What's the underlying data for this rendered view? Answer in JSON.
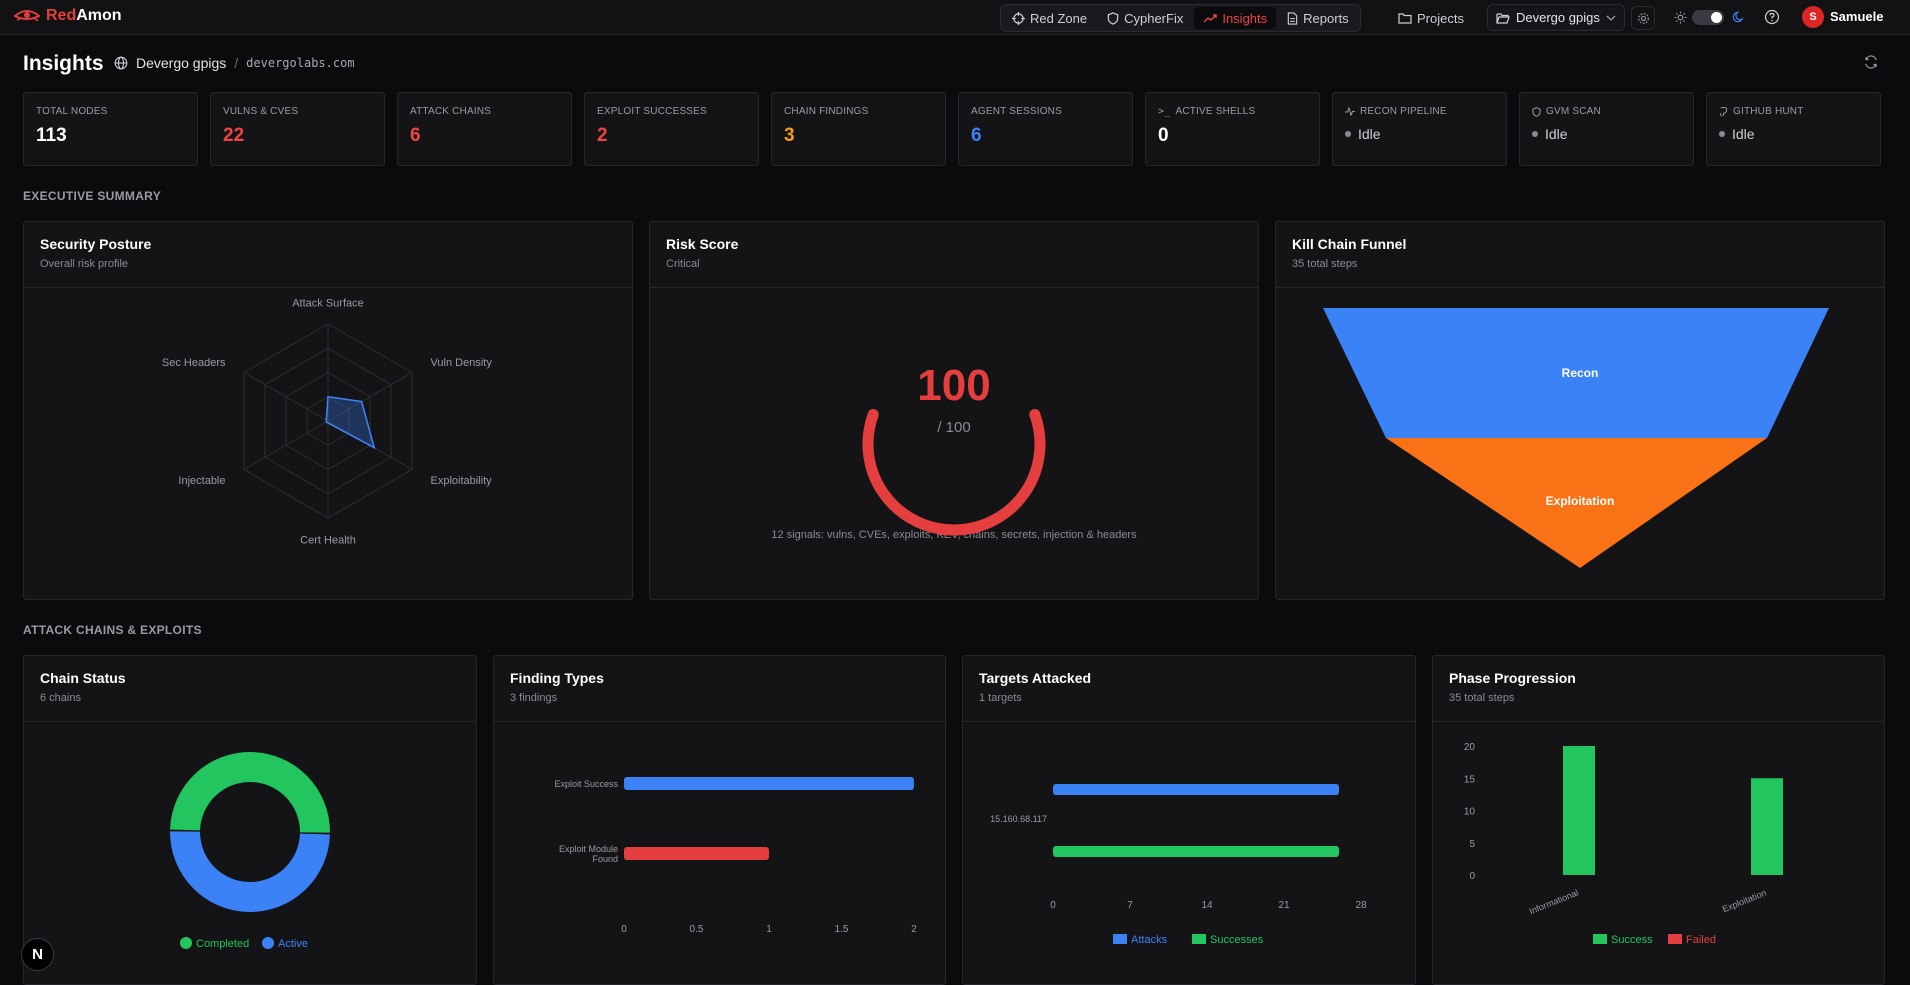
{
  "app": {
    "brand_red": "Red",
    "brand_white": "Amon"
  },
  "nav": [
    {
      "label": "Red Zone",
      "icon": "crosshair-icon"
    },
    {
      "label": "CypherFix",
      "icon": "shield-icon"
    },
    {
      "label": "Insights",
      "icon": "trending-up-icon",
      "active": true
    },
    {
      "label": "Reports",
      "icon": "document-icon"
    }
  ],
  "header": {
    "projects_label": "Projects",
    "project_name": "Devergo gpigs",
    "user_initial": "S",
    "user_name": "Samuele"
  },
  "page": {
    "title": "Insights",
    "project": "Devergo gpigs",
    "domain": "devergolabs.com"
  },
  "stats": [
    {
      "label": "Total Nodes",
      "value": "113",
      "color": "#ffffff"
    },
    {
      "label": "Vulns & CVEs",
      "value": "22",
      "color": "#ef4444"
    },
    {
      "label": "Attack Chains",
      "value": "6",
      "color": "#ef4444"
    },
    {
      "label": "Exploit Successes",
      "value": "2",
      "color": "#ef4444"
    },
    {
      "label": "Chain Findings",
      "value": "3",
      "color": "#f59e0b"
    },
    {
      "label": "Agent Sessions",
      "value": "6",
      "color": "#3b82f6"
    },
    {
      "label": "Active Shells",
      "value": "0",
      "color": "#ffffff",
      "icon": "terminal-icon"
    },
    {
      "label": "Recon Pipeline",
      "status": "Idle",
      "icon": "activity-icon"
    },
    {
      "label": "GVM Scan",
      "status": "Idle",
      "icon": "shield-icon"
    },
    {
      "label": "GitHub Hunt",
      "status": "Idle",
      "icon": "github-icon"
    }
  ],
  "sections": {
    "executive": "Executive Summary",
    "attack": "Attack Chains & Exploits"
  },
  "cards": {
    "posture": {
      "title": "Security Posture",
      "subtitle": "Overall risk profile"
    },
    "risk": {
      "title": "Risk Score",
      "subtitle": "Critical",
      "score": "100",
      "max": "/ 100",
      "footnote": "12 signals: vulns, CVEs, exploits, KEV, chains, secrets, injection & headers"
    },
    "funnel": {
      "title": "Kill Chain Funnel",
      "subtitle": "35 total steps"
    },
    "chain_status": {
      "title": "Chain Status",
      "subtitle": "6 chains"
    },
    "finding_types": {
      "title": "Finding Types",
      "subtitle": "3 findings"
    },
    "targets": {
      "title": "Targets Attacked",
      "subtitle": "1 targets"
    },
    "phase": {
      "title": "Phase Progression",
      "subtitle": "35 total steps"
    }
  },
  "chart_data": [
    {
      "type": "radar",
      "axes": [
        "Attack Surface",
        "Vuln Density",
        "Exploitability",
        "Cert Health",
        "Injectable",
        "Sec Headers"
      ],
      "values": [
        0.25,
        0.4,
        0.55,
        0.0,
        0.0,
        0.0
      ],
      "max": 1,
      "color": "#3b82f6"
    },
    {
      "type": "gauge",
      "value": 100,
      "max": 100,
      "color": "#e53e3e"
    },
    {
      "type": "funnel",
      "categories": [
        "Recon",
        "Exploitation"
      ],
      "values": [
        20,
        15
      ],
      "colors": [
        "#3b82f6",
        "#f97316"
      ]
    },
    {
      "type": "pie",
      "donut": true,
      "categories": [
        "Completed",
        "Active"
      ],
      "values": [
        3,
        3
      ],
      "colors": [
        "#22c55e",
        "#3b82f6"
      ]
    },
    {
      "type": "bar",
      "orientation": "horizontal",
      "categories": [
        "Exploit Success",
        "Exploit Module Found"
      ],
      "values": [
        2,
        1
      ],
      "colors": [
        "#3b82f6",
        "#e53e3e"
      ],
      "xlim": [
        0,
        2
      ],
      "xticks": [
        "0",
        "0.5",
        "1",
        "1.5",
        "2"
      ]
    },
    {
      "type": "bar",
      "orientation": "horizontal",
      "categories": [
        "15.160.68.117"
      ],
      "series": [
        {
          "name": "Attacks",
          "values": [
            26
          ],
          "color": "#3b82f6"
        },
        {
          "name": "Successes",
          "values": [
            26
          ],
          "color": "#22c55e"
        }
      ],
      "xlim": [
        0,
        28
      ],
      "xticks": [
        "0",
        "7",
        "14",
        "21",
        "28"
      ],
      "legend": "bottom"
    },
    {
      "type": "bar",
      "categories": [
        "Informational",
        "Exploitation"
      ],
      "series": [
        {
          "name": "Success",
          "values": [
            20,
            15
          ],
          "color": "#22c55e"
        },
        {
          "name": "Failed",
          "values": [
            0,
            0
          ],
          "color": "#e53e3e"
        }
      ],
      "ylim": [
        0,
        20
      ],
      "yticks": [
        "0",
        "5",
        "10",
        "15",
        "20"
      ],
      "legend": "bottom"
    }
  ]
}
